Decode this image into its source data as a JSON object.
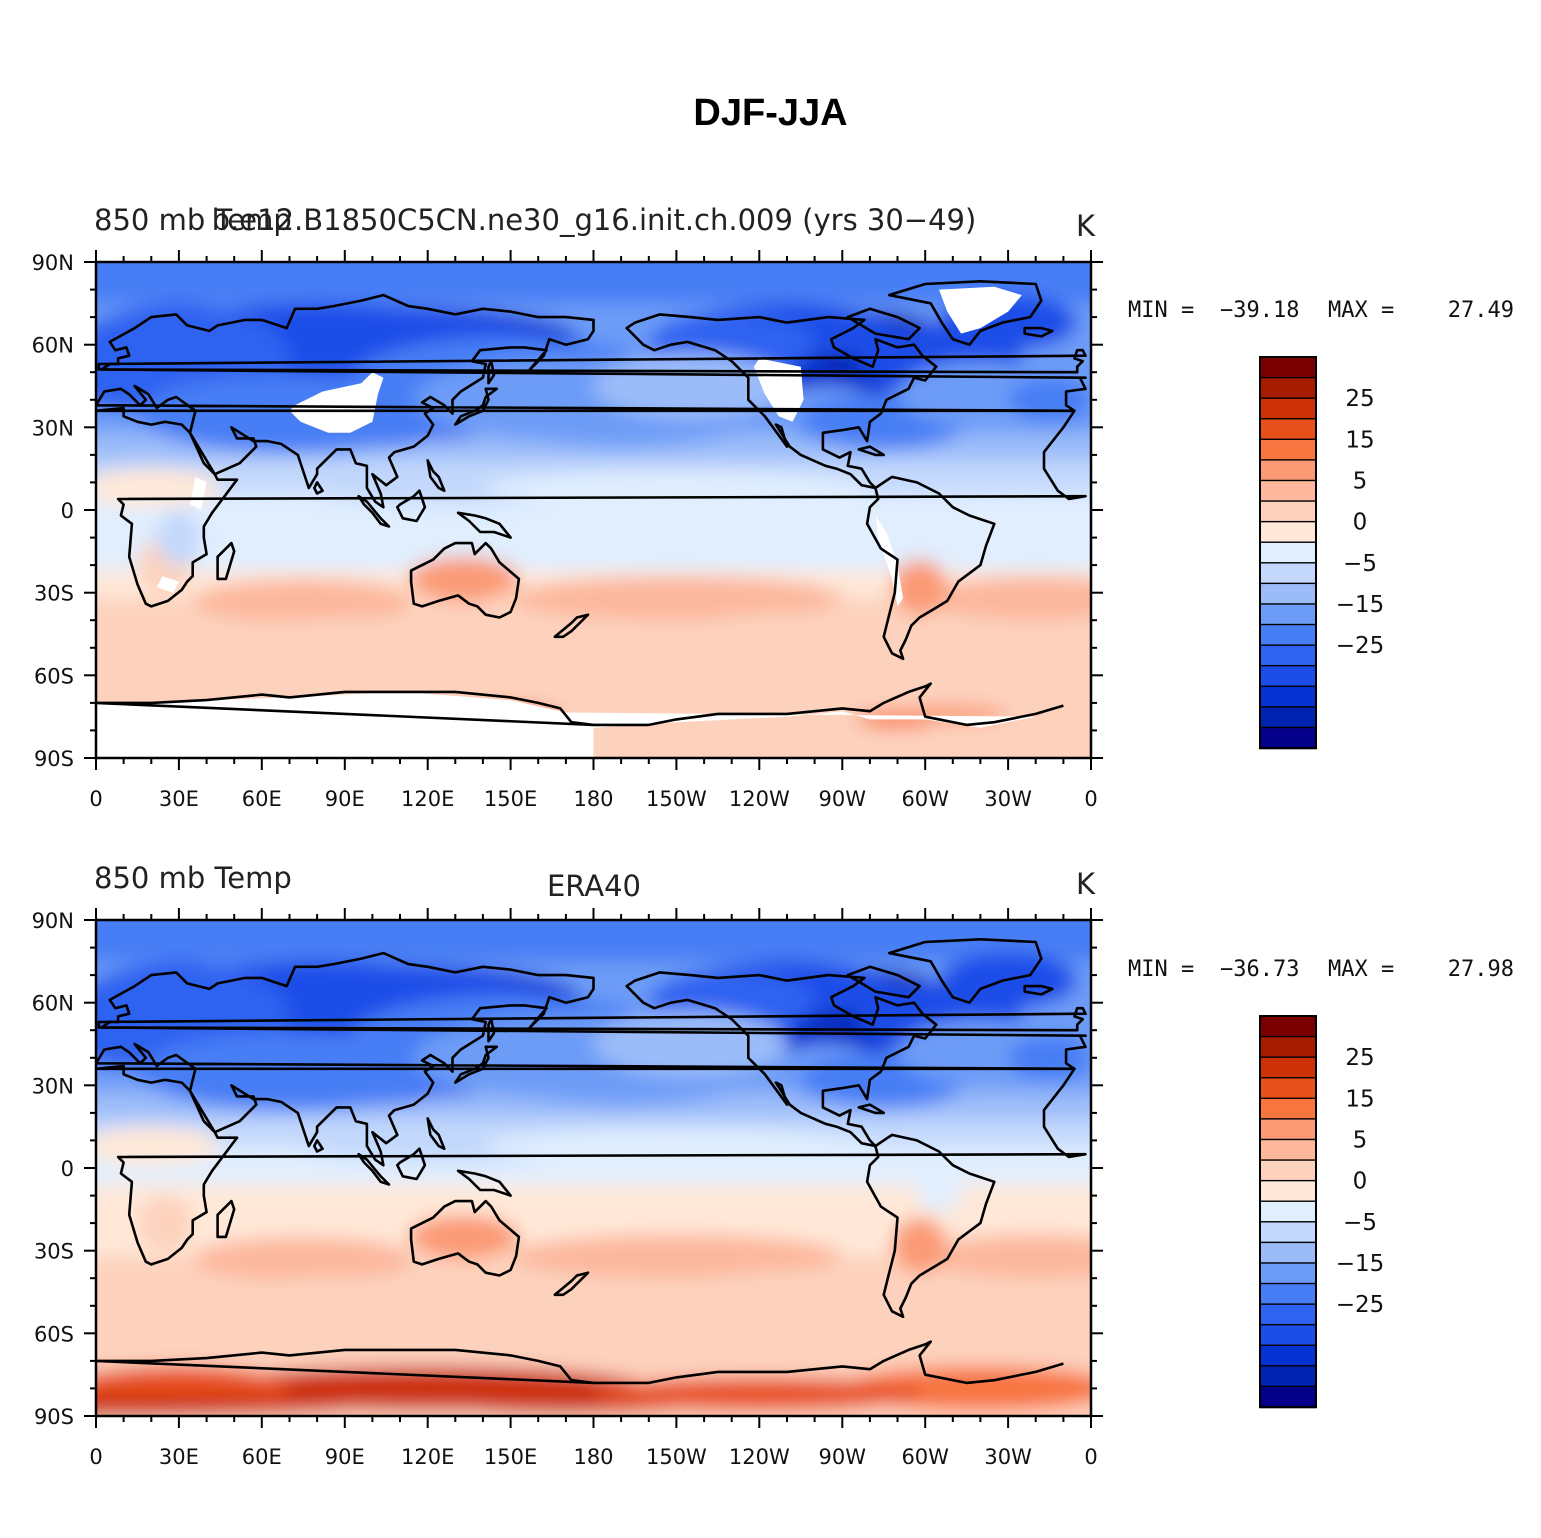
{
  "title": "DJF-JJA",
  "colorbar": {
    "colors": [
      "#05008a",
      "#0022b0",
      "#0533d3",
      "#1c4de8",
      "#2e62f0",
      "#477ef5",
      "#6d9cf7",
      "#9bbcf9",
      "#c3d8fc",
      "#e0eefe",
      "#ffe8d8",
      "#fdd2bd",
      "#fcb79c",
      "#fb9a74",
      "#f8753f",
      "#e8501b",
      "#cc3107",
      "#a51c00",
      "#7a0000"
    ],
    "tick_labels": [
      "25",
      "15",
      "5",
      "0",
      "−5",
      "−15",
      "−25"
    ]
  },
  "x_tick_labels": [
    "0",
    "30E",
    "60E",
    "90E",
    "120E",
    "150E",
    "180",
    "150W",
    "120W",
    "90W",
    "60W",
    "30W",
    "0"
  ],
  "y_tick_labels": [
    "90N",
    "60N",
    "30N",
    "0",
    "30S",
    "60S",
    "90S"
  ],
  "panels": [
    {
      "left_title": "850 mb Temp",
      "center_title": "b.e12.B1850C5CN.ne30_g16.init.ch.009 (yrs 30−49)",
      "units": "K",
      "min_label": "MIN =",
      "min_value": "−39.18",
      "max_label": "MAX =",
      "max_value": "27.49",
      "has_missing": true
    },
    {
      "left_title": "850 mb Temp",
      "center_title": "ERA40",
      "units": "K",
      "min_label": "MIN =",
      "min_value": "−36.73",
      "max_label": "MAX =",
      "max_value": "27.98",
      "has_missing": false
    }
  ]
}
